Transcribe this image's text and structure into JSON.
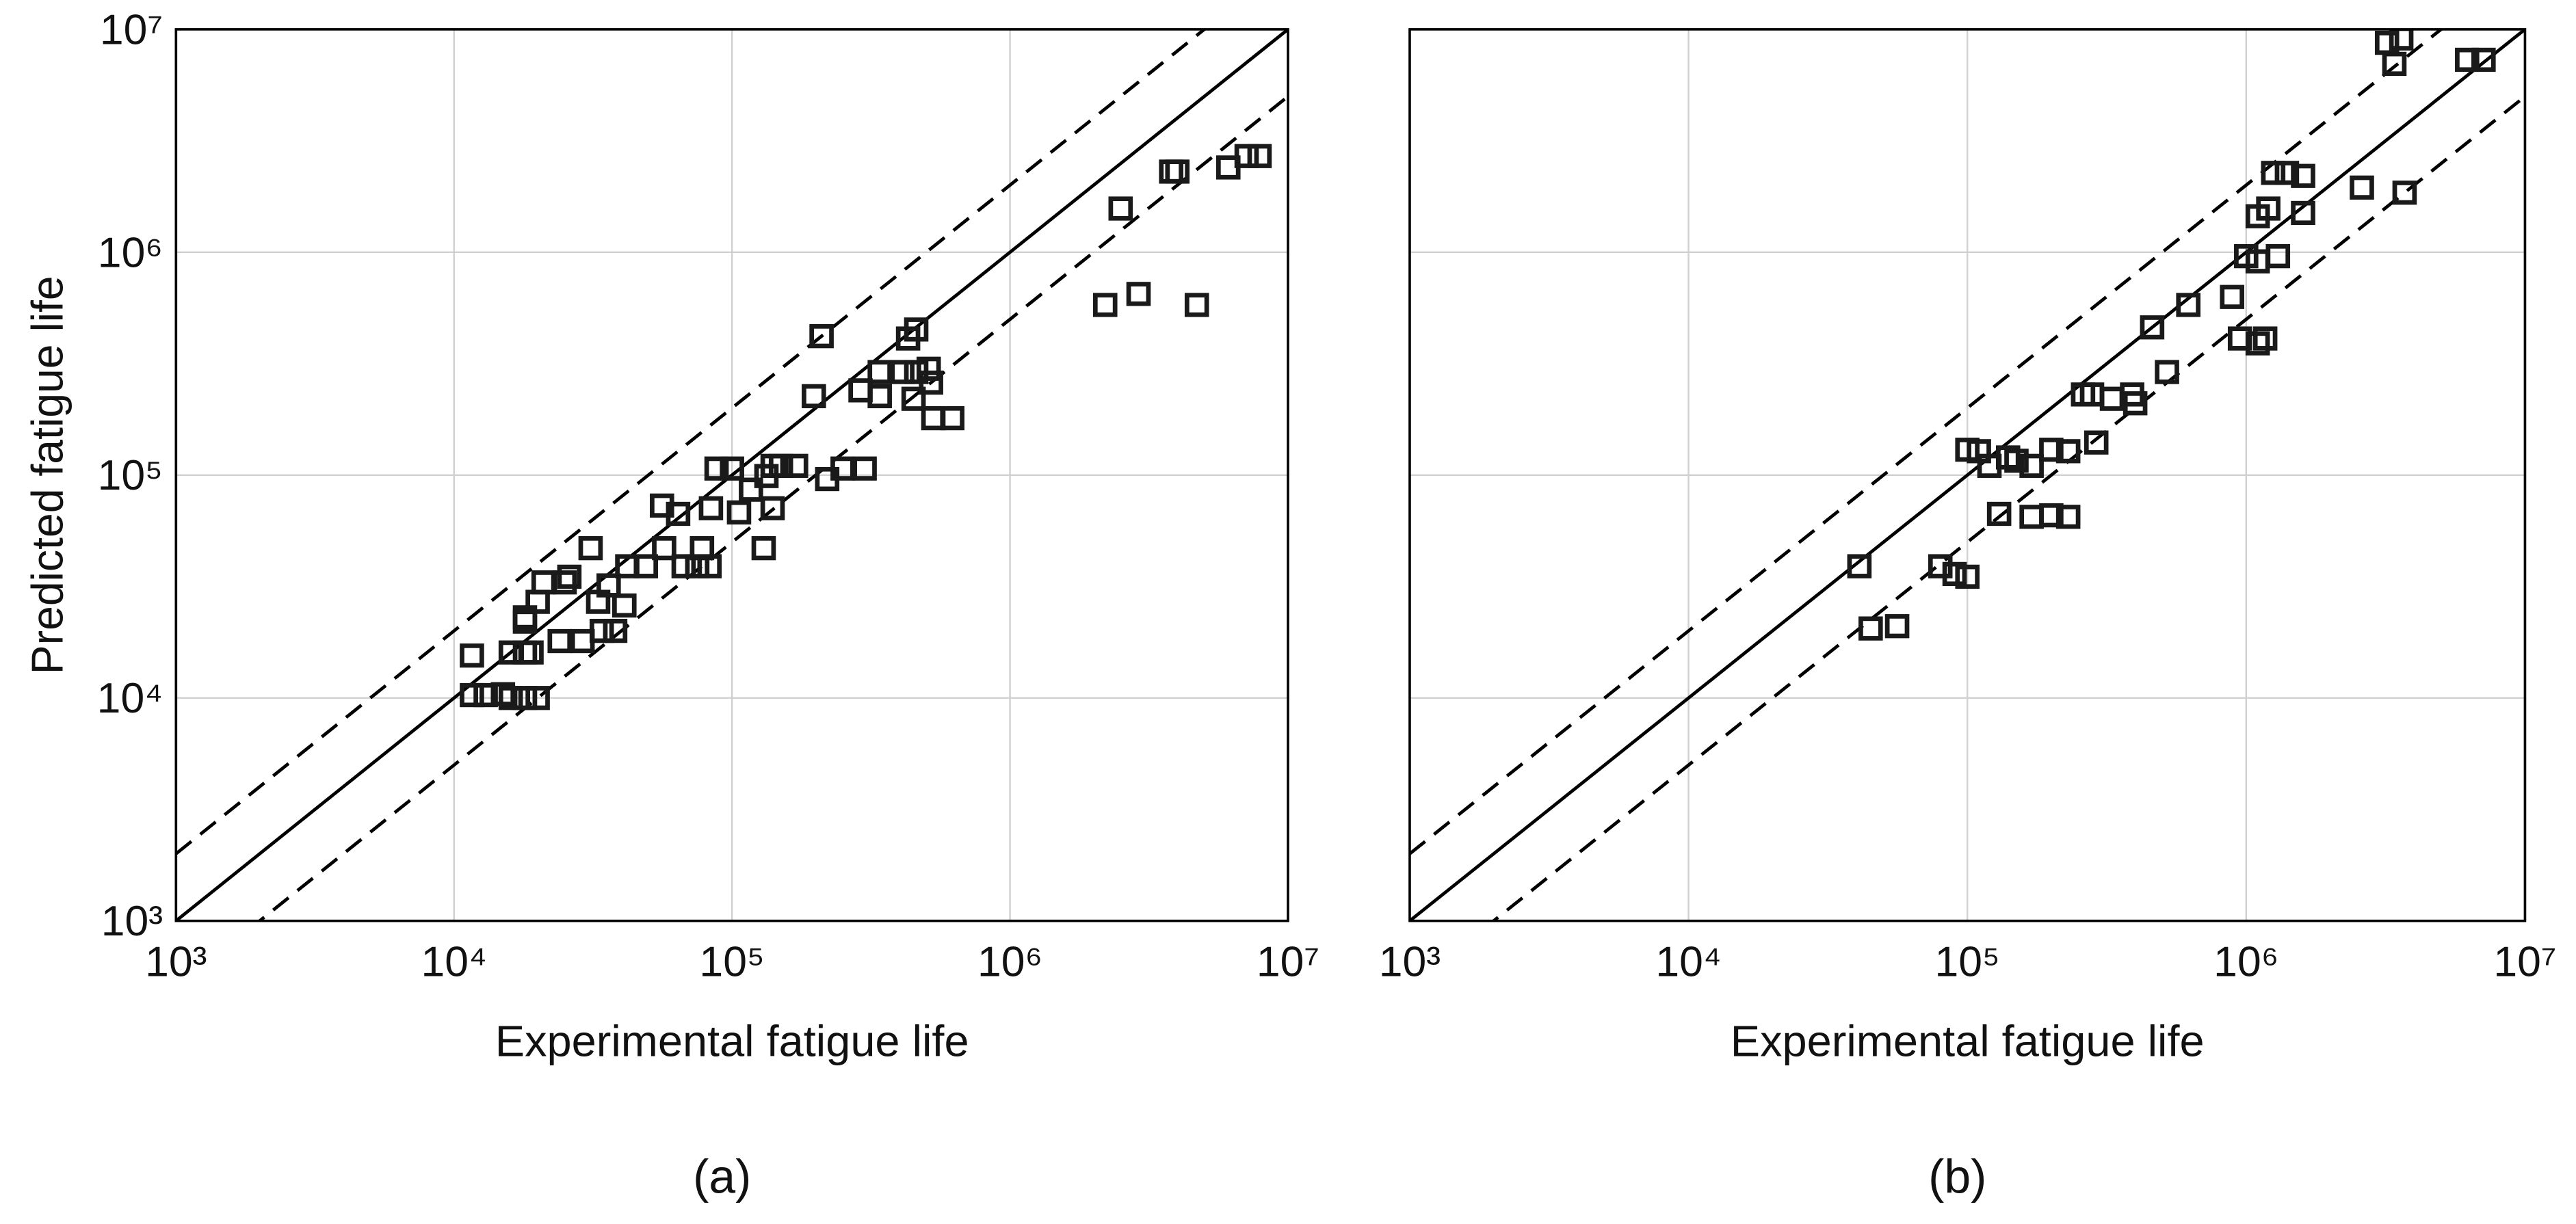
{
  "chart_data": [
    {
      "type": "scatter",
      "caption": "(a)",
      "xlabel": "Experimental fatigue life",
      "ylabel": "Predicted fatigue life",
      "log_x": true,
      "log_y": true,
      "grid": true,
      "color": "#1a1a1a",
      "show_ytick_labels": true,
      "xlim": [
        1000,
        10000000
      ],
      "ylim": [
        1000,
        10000000
      ],
      "xticks": [
        {
          "value": 1000,
          "label": "10³"
        },
        {
          "value": 10000,
          "label": "10⁴"
        },
        {
          "value": 100000,
          "label": "10⁵"
        },
        {
          "value": 1000000,
          "label": "10⁶"
        },
        {
          "value": 10000000,
          "label": "10⁷"
        }
      ],
      "yticks": [
        {
          "value": 1000,
          "label": "10³"
        },
        {
          "value": 10000,
          "label": "10⁴"
        },
        {
          "value": 100000,
          "label": "10⁵"
        },
        {
          "value": 1000000,
          "label": "10⁶"
        },
        {
          "value": 10000000,
          "label": "10⁷"
        }
      ],
      "reference_lines": [
        {
          "factor": 1,
          "style": "solid"
        },
        {
          "factor": 2,
          "style": "dashed"
        },
        {
          "factor": 0.5,
          "style": "dashed"
        }
      ],
      "x": [
        11600,
        11600,
        13000,
        15000,
        16000,
        18000,
        20000,
        16000,
        18000,
        19000,
        18000,
        18000,
        20000,
        21000,
        24000,
        25000,
        29000,
        26000,
        31000,
        33000,
        34000,
        38000,
        36000,
        41000,
        42000,
        49000,
        56000,
        57000,
        64000,
        67000,
        75000,
        78000,
        84000,
        83000,
        88000,
        100000,
        106000,
        117000,
        130000,
        133000,
        140000,
        140000,
        150000,
        170000,
        197000,
        210000,
        220000,
        250000,
        300000,
        290000,
        340000,
        340000,
        410000,
        430000,
        450000,
        460000,
        460000,
        510000,
        520000,
        530000,
        620000,
        2200000,
        2500000,
        2900000,
        3800000,
        4000000,
        4700000,
        6100000,
        7100000,
        7900000
      ],
      "values": [
        15500,
        10300,
        10300,
        10400,
        10000,
        10000,
        10000,
        16000,
        16000,
        16000,
        22000,
        23000,
        27000,
        33000,
        18000,
        33000,
        18000,
        35000,
        47000,
        27000,
        20000,
        20000,
        32000,
        26000,
        39000,
        39000,
        73000,
        47000,
        67000,
        39000,
        39000,
        47000,
        71000,
        39000,
        107000,
        107000,
        68000,
        86000,
        47000,
        99000,
        71000,
        110000,
        110000,
        110000,
        226000,
        420000,
        96000,
        107000,
        107000,
        240000,
        290000,
        226000,
        290000,
        410000,
        220000,
        450000,
        290000,
        300000,
        260000,
        180000,
        180000,
        580000,
        1570000,
        650000,
        2300000,
        2300000,
        580000,
        2400000,
        2700000,
        2700000
      ]
    },
    {
      "type": "scatter",
      "caption": "(b)",
      "xlabel": "Experimental fatigue life",
      "log_x": true,
      "log_y": true,
      "grid": true,
      "color": "#1a1a1a",
      "show_ytick_labels": false,
      "xlim": [
        1000,
        10000000
      ],
      "ylim": [
        1000,
        10000000
      ],
      "xticks": [
        {
          "value": 1000,
          "label": "10³"
        },
        {
          "value": 10000,
          "label": "10⁴"
        },
        {
          "value": 100000,
          "label": "10⁵"
        },
        {
          "value": 1000000,
          "label": "10⁶"
        },
        {
          "value": 10000000,
          "label": "10⁷"
        }
      ],
      "yticks": [
        1000,
        10000,
        100000,
        1000000,
        10000000
      ],
      "reference_lines": [
        {
          "factor": 1,
          "style": "solid"
        },
        {
          "factor": 2,
          "style": "dashed"
        },
        {
          "factor": 0.5,
          "style": "dashed"
        }
      ],
      "x": [
        41000,
        45000,
        56000,
        80000,
        90000,
        100000,
        100000,
        110000,
        120000,
        130000,
        140000,
        150000,
        170000,
        170000,
        200000,
        200000,
        230000,
        230000,
        260000,
        280000,
        290000,
        330000,
        390000,
        400000,
        460000,
        520000,
        620000,
        890000,
        950000,
        1000000,
        1100000,
        1100000,
        1170000,
        1100000,
        1200000,
        1300000,
        1250000,
        1400000,
        1600000,
        1600000,
        2600000,
        3700000,
        3200000,
        3600000,
        3400000,
        6200000,
        7100000
      ],
      "values": [
        39000,
        20500,
        21000,
        39000,
        36000,
        35000,
        130000,
        128000,
        110000,
        67000,
        120000,
        116000,
        110000,
        65000,
        66000,
        130000,
        128000,
        65000,
        230000,
        230000,
        140000,
        220000,
        230000,
        210000,
        460000,
        290000,
        580000,
        630000,
        410000,
        960000,
        390000,
        910000,
        410000,
        1450000,
        1570000,
        960000,
        2270000,
        2270000,
        1500000,
        2200000,
        1950000,
        1850000,
        8700000,
        9100000,
        7000000,
        7300000,
        7300000
      ]
    }
  ]
}
